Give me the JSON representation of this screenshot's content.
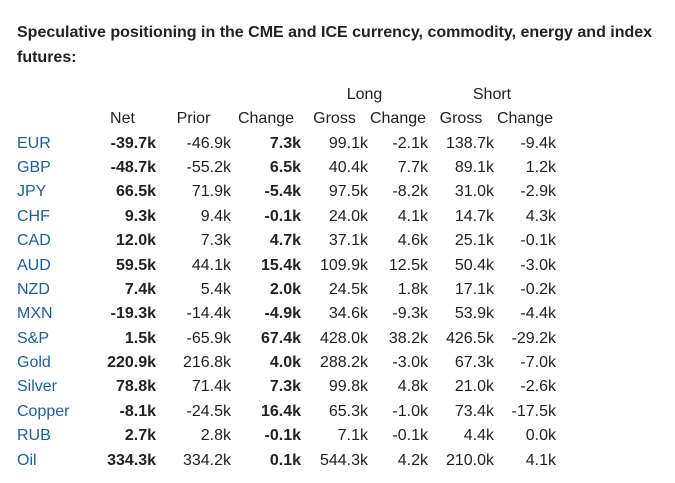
{
  "title": "Speculative positioning in the CME and ICE currency, commodity, energy and index futures:",
  "group_headers": {
    "long": "Long",
    "short": "Short"
  },
  "columns": [
    "Net",
    "Prior",
    "Change",
    "Gross",
    "Change",
    "Gross",
    "Change"
  ],
  "rows": [
    {
      "label": "EUR",
      "net": "-39.7k",
      "prior": "-46.9k",
      "change": "7.3k",
      "long_gross": "99.1k",
      "long_change": "-2.1k",
      "short_gross": "138.7k",
      "short_change": "-9.4k"
    },
    {
      "label": "GBP",
      "net": "-48.7k",
      "prior": "-55.2k",
      "change": "6.5k",
      "long_gross": "40.4k",
      "long_change": "7.7k",
      "short_gross": "89.1k",
      "short_change": "1.2k"
    },
    {
      "label": "JPY",
      "net": "66.5k",
      "prior": "71.9k",
      "change": "-5.4k",
      "long_gross": "97.5k",
      "long_change": "-8.2k",
      "short_gross": "31.0k",
      "short_change": "-2.9k"
    },
    {
      "label": "CHF",
      "net": "9.3k",
      "prior": "9.4k",
      "change": "-0.1k",
      "long_gross": "24.0k",
      "long_change": "4.1k",
      "short_gross": "14.7k",
      "short_change": "4.3k"
    },
    {
      "label": "CAD",
      "net": "12.0k",
      "prior": "7.3k",
      "change": "4.7k",
      "long_gross": "37.1k",
      "long_change": "4.6k",
      "short_gross": "25.1k",
      "short_change": "-0.1k"
    },
    {
      "label": "AUD",
      "net": "59.5k",
      "prior": "44.1k",
      "change": "15.4k",
      "long_gross": "109.9k",
      "long_change": "12.5k",
      "short_gross": "50.4k",
      "short_change": "-3.0k"
    },
    {
      "label": "NZD",
      "net": "7.4k",
      "prior": "5.4k",
      "change": "2.0k",
      "long_gross": "24.5k",
      "long_change": "1.8k",
      "short_gross": "17.1k",
      "short_change": "-0.2k"
    },
    {
      "label": "MXN",
      "net": "-19.3k",
      "prior": "-14.4k",
      "change": "-4.9k",
      "long_gross": "34.6k",
      "long_change": "-9.3k",
      "short_gross": "53.9k",
      "short_change": "-4.4k"
    },
    {
      "label": "S&P",
      "net": "1.5k",
      "prior": "-65.9k",
      "change": "67.4k",
      "long_gross": "428.0k",
      "long_change": "38.2k",
      "short_gross": "426.5k",
      "short_change": "-29.2k"
    },
    {
      "label": "Gold",
      "net": "220.9k",
      "prior": "216.8k",
      "change": "4.0k",
      "long_gross": "288.2k",
      "long_change": "-3.0k",
      "short_gross": "67.3k",
      "short_change": "-7.0k"
    },
    {
      "label": "Silver",
      "net": "78.8k",
      "prior": "71.4k",
      "change": "7.3k",
      "long_gross": "99.8k",
      "long_change": "4.8k",
      "short_gross": "21.0k",
      "short_change": "-2.6k"
    },
    {
      "label": "Copper",
      "net": "-8.1k",
      "prior": "-24.5k",
      "change": "16.4k",
      "long_gross": "65.3k",
      "long_change": "-1.0k",
      "short_gross": "73.4k",
      "short_change": "-17.5k"
    },
    {
      "label": "RUB",
      "net": "2.7k",
      "prior": "2.8k",
      "change": "-0.1k",
      "long_gross": "7.1k",
      "long_change": "-0.1k",
      "short_gross": "4.4k",
      "short_change": "0.0k"
    },
    {
      "label": "Oil",
      "net": "334.3k",
      "prior": "334.2k",
      "change": "0.1k",
      "long_gross": "544.3k",
      "long_change": "4.2k",
      "short_gross": "210.0k",
      "short_change": "4.1k"
    }
  ],
  "colors": {
    "label_link": "#1a5ea8",
    "text": "#222222"
  }
}
